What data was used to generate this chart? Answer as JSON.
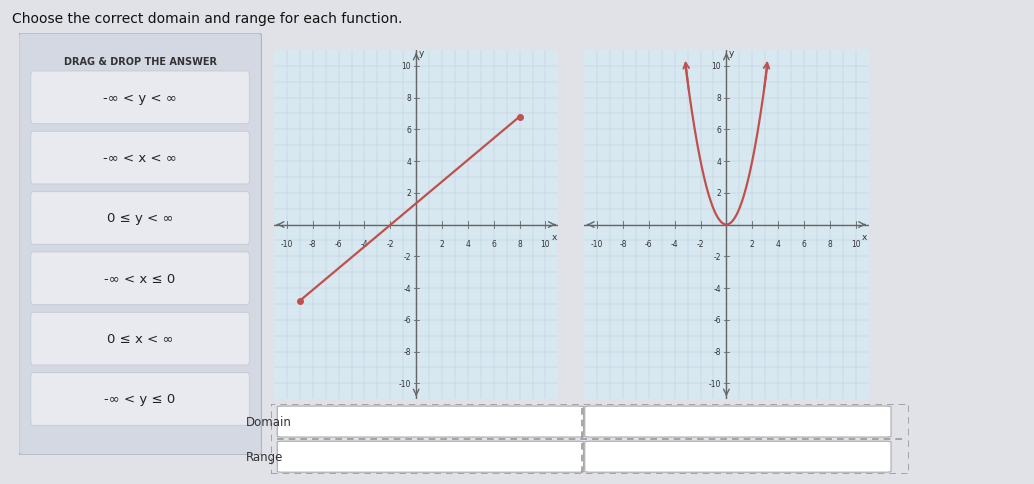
{
  "title": "Choose the correct domain and range for each function.",
  "title_fontsize": 10,
  "drag_drop_title": "DRAG & DROP THE ANSWER",
  "answer_boxes": [
    "-∞ < y < ∞",
    "-∞ < x < ∞",
    "0 ≤ y < ∞",
    "-∞ < x ≤ 0",
    "0 ≤ x < ∞",
    "-∞ < y ≤ 0"
  ],
  "left_panel_bg": "#d4d8e2",
  "answer_box_bg": "#eef0f4",
  "graph_bg": "#d8e8f0",
  "grid_color": "#b8cedd",
  "axis_color": "#666666",
  "line_color": "#c0504d",
  "page_bg": "#e0e2e8",
  "inner_bg": "#f0f0f0"
}
